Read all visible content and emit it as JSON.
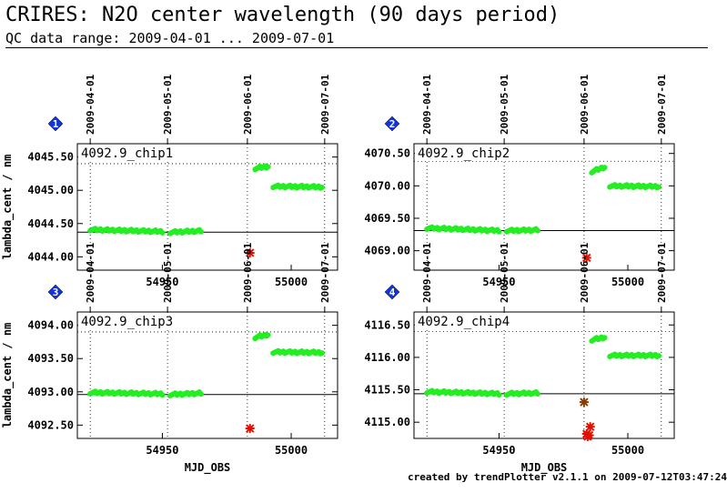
{
  "header": {
    "title": "CRIRES: N2O center wavelength (90 days period)",
    "subtitle": "QC data range: 2009-04-01 ... 2009-07-01"
  },
  "footer": {
    "text": "created by trendPlotter v2.1.1 on 2009-07-12T03:47:24"
  },
  "colors": {
    "good": "#22ee22",
    "outlier": "#dd1100",
    "badge": "#1133dd",
    "grid": "#000000"
  },
  "chart_data": [
    {
      "type": "scatter",
      "panel": "1",
      "title": "4092.9_chip1",
      "xlabel": "",
      "ylabel": "lambda_cent / nm",
      "xlim": [
        54917,
        55018
      ],
      "ylim": [
        4043.8,
        4045.7
      ],
      "yticks": [
        4044.0,
        4044.5,
        4045.0,
        4045.5
      ],
      "ytick_labels": [
        "4044.00",
        "4044.50",
        "4045.00",
        "4045.50"
      ],
      "xticks": [
        54950,
        55000
      ],
      "xtick_labels": [
        "54950",
        "55000"
      ],
      "date_ticks": [
        {
          "mjd": 54922,
          "label": "2009-04-01"
        },
        {
          "mjd": 54952,
          "label": "2009-05-01"
        },
        {
          "mjd": 54983,
          "label": "2009-06-01"
        },
        {
          "mjd": 55013,
          "label": "2009-07-01"
        }
      ],
      "reference_line": 4044.37,
      "dotted_line": 4045.4,
      "series": [
        {
          "segments": [
            {
              "x_start": 54922,
              "x_end": 54950,
              "y_start": 4044.41,
              "y_end": 4044.38
            },
            {
              "x_start": 54953,
              "x_end": 54965,
              "y_start": 4044.37,
              "y_end": 4044.39
            },
            {
              "x_start": 54986,
              "x_end": 54991,
              "y_start": 4045.33,
              "y_end": 4045.36
            },
            {
              "x_start": 54993,
              "x_end": 55012,
              "y_start": 4045.06,
              "y_end": 4045.05
            }
          ]
        },
        {
          "outliers": [
            {
              "x": 54984,
              "y": 4044.06
            }
          ],
          "outlier_style": "star"
        }
      ]
    },
    {
      "type": "scatter",
      "panel": "2",
      "title": "4092.9_chip2",
      "xlabel": "",
      "ylabel": "",
      "xlim": [
        54917,
        55018
      ],
      "ylim": [
        4068.7,
        4070.65
      ],
      "yticks": [
        4069.0,
        4069.5,
        4070.0,
        4070.5
      ],
      "ytick_labels": [
        "4069.00",
        "4069.50",
        "4070.00",
        "4070.50"
      ],
      "xticks": [
        54950,
        55000
      ],
      "xtick_labels": [
        "54950",
        "55000"
      ],
      "date_ticks": [
        {
          "mjd": 54922,
          "label": "2009-04-01"
        },
        {
          "mjd": 54952,
          "label": "2009-05-01"
        },
        {
          "mjd": 54983,
          "label": "2009-06-01"
        },
        {
          "mjd": 55013,
          "label": "2009-07-01"
        }
      ],
      "reference_line": 4069.31,
      "dotted_line": 4070.38,
      "series": [
        {
          "segments": [
            {
              "x_start": 54922,
              "x_end": 54950,
              "y_start": 4069.35,
              "y_end": 4069.31
            },
            {
              "x_start": 54953,
              "x_end": 54965,
              "y_start": 4069.31,
              "y_end": 4069.32
            },
            {
              "x_start": 54986,
              "x_end": 54991,
              "y_start": 4070.22,
              "y_end": 4070.29
            },
            {
              "x_start": 54993,
              "x_end": 55012,
              "y_start": 4070.0,
              "y_end": 4069.99
            }
          ]
        },
        {
          "outliers": [
            {
              "x": 54984,
              "y": 4068.89
            }
          ],
          "outlier_style": "star"
        }
      ]
    },
    {
      "type": "scatter",
      "panel": "3",
      "title": "4092.9_chip3",
      "xlabel": "MJD_OBS",
      "ylabel": "lambda_cent / nm",
      "xlim": [
        54917,
        55018
      ],
      "ylim": [
        4092.3,
        4094.2
      ],
      "yticks": [
        4092.5,
        4093.0,
        4093.5,
        4094.0
      ],
      "ytick_labels": [
        "4092.50",
        "4093.00",
        "4093.50",
        "4094.00"
      ],
      "xticks": [
        54950,
        55000
      ],
      "xtick_labels": [
        "54950",
        "55000"
      ],
      "date_ticks": [
        {
          "mjd": 54922,
          "label": "2009-04-01"
        },
        {
          "mjd": 54952,
          "label": "2009-05-01"
        },
        {
          "mjd": 54983,
          "label": "2009-06-01"
        },
        {
          "mjd": 55013,
          "label": "2009-07-01"
        }
      ],
      "reference_line": 4092.96,
      "dotted_line": 4093.9,
      "series": [
        {
          "segments": [
            {
              "x_start": 54922,
              "x_end": 54950,
              "y_start": 4092.99,
              "y_end": 4092.97
            },
            {
              "x_start": 54953,
              "x_end": 54965,
              "y_start": 4092.96,
              "y_end": 4092.98
            },
            {
              "x_start": 54986,
              "x_end": 54991,
              "y_start": 4093.82,
              "y_end": 4093.86
            },
            {
              "x_start": 54993,
              "x_end": 55012,
              "y_start": 4093.6,
              "y_end": 4093.59
            }
          ]
        },
        {
          "outliers": [
            {
              "x": 54984,
              "y": 4092.45
            }
          ],
          "outlier_style": "star"
        }
      ]
    },
    {
      "type": "scatter",
      "panel": "4",
      "title": "4092.9_chip4",
      "xlabel": "MJD_OBS",
      "ylabel": "",
      "xlim": [
        54917,
        55018
      ],
      "ylim": [
        4114.75,
        4116.7
      ],
      "yticks": [
        4115.0,
        4115.5,
        4116.0,
        4116.5
      ],
      "ytick_labels": [
        "4115.00",
        "4115.50",
        "4116.00",
        "4116.50"
      ],
      "xticks": [
        54950,
        55000
      ],
      "xtick_labels": [
        "54950",
        "55000"
      ],
      "date_ticks": [
        {
          "mjd": 54922,
          "label": "2009-04-01"
        },
        {
          "mjd": 54952,
          "label": "2009-05-01"
        },
        {
          "mjd": 54983,
          "label": "2009-06-01"
        },
        {
          "mjd": 55013,
          "label": "2009-07-01"
        }
      ],
      "reference_line": 4115.44,
      "dotted_line": 4116.4,
      "series": [
        {
          "segments": [
            {
              "x_start": 54922,
              "x_end": 54950,
              "y_start": 4115.47,
              "y_end": 4115.44
            },
            {
              "x_start": 54953,
              "x_end": 54965,
              "y_start": 4115.44,
              "y_end": 4115.45
            },
            {
              "x_start": 54986,
              "x_end": 54991,
              "y_start": 4116.27,
              "y_end": 4116.31
            },
            {
              "x_start": 54993,
              "x_end": 55012,
              "y_start": 4116.03,
              "y_end": 4116.03
            }
          ]
        },
        {
          "outliers": [
            {
              "x": 54983,
              "y": 4115.31
            },
            {
              "x": 54984,
              "y": 4114.82
            },
            {
              "x": 54984.4,
              "y": 4114.78
            },
            {
              "x": 54985,
              "y": 4114.8
            },
            {
              "x": 54985.4,
              "y": 4114.93
            }
          ],
          "outlier_style": "mixed"
        }
      ]
    }
  ]
}
